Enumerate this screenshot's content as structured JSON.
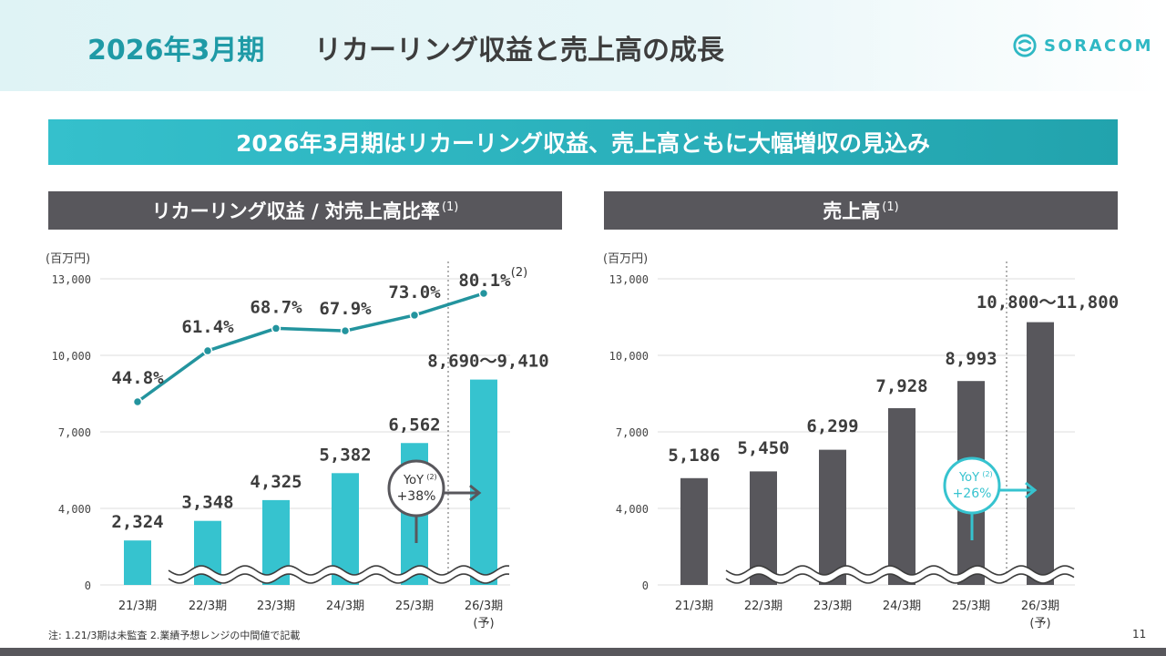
{
  "header": {
    "year": "2026年3月期",
    "title": "リカーリング収益と売上高の成長",
    "logo_text": "SORACOM"
  },
  "banner": "2026年3月期はリカーリング収益、売上高ともに大幅増収の見込み",
  "footnote": "注: 1.21/3期は未監査  2.業績予想レンジの中間値で記載",
  "page_number": "11",
  "colors": {
    "accent": "#36c3cf",
    "line": "#23949e",
    "dark_bar": "#58575c",
    "yoy_left_circle": "#58575c",
    "yoy_right_circle": "#36c3cf"
  },
  "chart_data": [
    {
      "type": "bar",
      "title": "リカーリング収益 / 対売上高比率",
      "title_note": "(1)",
      "unit": "(百万円)",
      "categories": [
        "21/3期",
        "22/3期",
        "23/3期",
        "24/3期",
        "25/3期",
        "26/3期"
      ],
      "category_notes": [
        "",
        "",
        "",
        "",
        "",
        "(予)"
      ],
      "yticks": [
        "0",
        "4,000",
        "7,000",
        "10,000",
        "13,000"
      ],
      "ytick_values": [
        0,
        4000,
        7000,
        10000,
        13000
      ],
      "values": [
        2324,
        3348,
        4325,
        5382,
        6562,
        9050
      ],
      "value_labels": [
        "2,324",
        "3,348",
        "4,325",
        "5,382",
        "6,562",
        "8,690～9,410"
      ],
      "series": [
        {
          "type": "line",
          "values": [
            44.8,
            61.4,
            68.7,
            67.9,
            73.0,
            80.1
          ],
          "labels": [
            "44.8%",
            "61.4%",
            "68.7%",
            "67.9%",
            "73.0%",
            "80.1%"
          ],
          "last_label_note": "(2)"
        }
      ],
      "yoy": {
        "label": "YoY",
        "note": "(2)",
        "value": "+38%"
      }
    },
    {
      "type": "bar",
      "title": "売上高",
      "title_note": "(1)",
      "unit": "(百万円)",
      "categories": [
        "21/3期",
        "22/3期",
        "23/3期",
        "24/3期",
        "25/3期",
        "26/3期"
      ],
      "category_notes": [
        "",
        "",
        "",
        "",
        "",
        "(予)"
      ],
      "yticks": [
        "0",
        "4,000",
        "7,000",
        "10,000",
        "13,000"
      ],
      "ytick_values": [
        0,
        4000,
        7000,
        10000,
        13000
      ],
      "values": [
        5186,
        5450,
        6299,
        7928,
        8993,
        11300
      ],
      "value_labels": [
        "5,186",
        "5,450",
        "6,299",
        "7,928",
        "8,993",
        "10,800～11,800"
      ],
      "yoy": {
        "label": "YoY",
        "note": "(2)",
        "value": "+26%"
      }
    }
  ]
}
